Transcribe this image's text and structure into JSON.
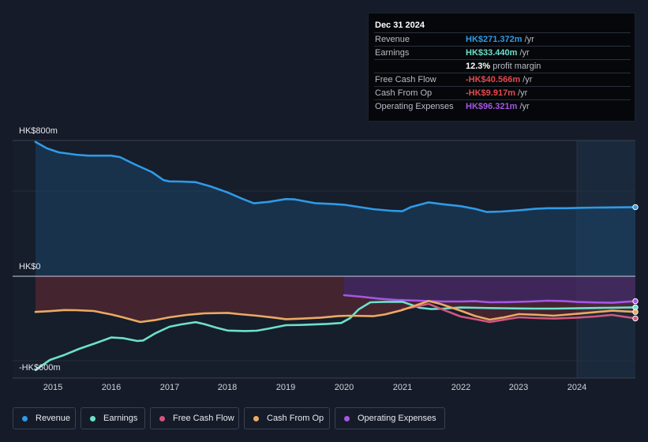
{
  "chart_data": {
    "type": "area",
    "ylim": [
      -600,
      800
    ],
    "ytick_labels": [
      "HK$800m",
      "HK$0",
      "-HK$600m"
    ],
    "xtick_labels": [
      "2015",
      "2016",
      "2017",
      "2018",
      "2019",
      "2020",
      "2021",
      "2022",
      "2023",
      "2024"
    ],
    "xlim": [
      2014.55,
      2025.0
    ],
    "forecast_start": 2024.0,
    "zero": 0,
    "series": [
      {
        "name": "Revenue",
        "key": "revenue",
        "color": "#2f9ae6",
        "points": [
          [
            2014.7,
            851
          ],
          [
            2014.9,
            810
          ],
          [
            2015.1,
            785
          ],
          [
            2015.4,
            770
          ],
          [
            2015.6,
            764
          ],
          [
            2016.0,
            764
          ],
          [
            2016.15,
            755
          ],
          [
            2016.4,
            710
          ],
          [
            2016.7,
            660
          ],
          [
            2016.9,
            609
          ],
          [
            2017.0,
            601
          ],
          [
            2017.2,
            600
          ],
          [
            2017.45,
            596
          ],
          [
            2017.7,
            570
          ],
          [
            2018.0,
            531
          ],
          [
            2018.25,
            491
          ],
          [
            2018.45,
            462
          ],
          [
            2018.7,
            471
          ],
          [
            2019.0,
            489
          ],
          [
            2019.15,
            487
          ],
          [
            2019.5,
            463
          ],
          [
            2019.8,
            458
          ],
          [
            2020.0,
            453
          ],
          [
            2020.2,
            442
          ],
          [
            2020.5,
            425
          ],
          [
            2020.8,
            415
          ],
          [
            2021.0,
            412
          ],
          [
            2021.15,
            439
          ],
          [
            2021.45,
            468
          ],
          [
            2021.7,
            456
          ],
          [
            2022.0,
            444
          ],
          [
            2022.25,
            427
          ],
          [
            2022.45,
            407
          ],
          [
            2022.7,
            410
          ],
          [
            2023.0,
            418
          ],
          [
            2023.3,
            428
          ],
          [
            2023.5,
            431
          ],
          [
            2023.8,
            431
          ],
          [
            2024.0,
            433
          ],
          [
            2024.3,
            435
          ],
          [
            2024.6,
            436
          ],
          [
            2025.0,
            438
          ]
        ]
      },
      {
        "name": "Earnings",
        "key": "earnings",
        "color": "#6de0cc",
        "points": [
          [
            2014.7,
            -594
          ],
          [
            2014.95,
            -530
          ],
          [
            2015.2,
            -498
          ],
          [
            2015.45,
            -460
          ],
          [
            2015.75,
            -422
          ],
          [
            2016.0,
            -388
          ],
          [
            2016.2,
            -392
          ],
          [
            2016.45,
            -410
          ],
          [
            2016.55,
            -407
          ],
          [
            2016.75,
            -363
          ],
          [
            2017.0,
            -320
          ],
          [
            2017.2,
            -305
          ],
          [
            2017.45,
            -291
          ],
          [
            2017.6,
            -303
          ],
          [
            2017.8,
            -325
          ],
          [
            2018.0,
            -344
          ],
          [
            2018.3,
            -347
          ],
          [
            2018.5,
            -345
          ],
          [
            2018.7,
            -332
          ],
          [
            2019.0,
            -310
          ],
          [
            2019.3,
            -308
          ],
          [
            2019.7,
            -302
          ],
          [
            2019.95,
            -296
          ],
          [
            2020.1,
            -266
          ],
          [
            2020.25,
            -210
          ],
          [
            2020.45,
            -165
          ],
          [
            2020.7,
            -162
          ],
          [
            2021.0,
            -162
          ],
          [
            2021.1,
            -174
          ],
          [
            2021.3,
            -200
          ],
          [
            2021.5,
            -208
          ],
          [
            2021.7,
            -205
          ],
          [
            2022.0,
            -198
          ],
          [
            2022.3,
            -200
          ],
          [
            2022.6,
            -202
          ],
          [
            2023.0,
            -204
          ],
          [
            2023.3,
            -205
          ],
          [
            2023.6,
            -205
          ],
          [
            2024.0,
            -203
          ],
          [
            2024.5,
            -200
          ],
          [
            2025.0,
            -197
          ]
        ]
      },
      {
        "name": "Free Cash Flow",
        "key": "fcf",
        "color": "#d3557e",
        "points": [
          [
            2021.0,
            -210
          ],
          [
            2021.2,
            -195
          ],
          [
            2021.45,
            -175
          ],
          [
            2021.7,
            -212
          ],
          [
            2022.0,
            -255
          ],
          [
            2022.25,
            -272
          ],
          [
            2022.5,
            -290
          ],
          [
            2022.8,
            -272
          ],
          [
            2023.0,
            -260
          ],
          [
            2023.3,
            -265
          ],
          [
            2023.6,
            -268
          ],
          [
            2024.0,
            -262
          ],
          [
            2024.3,
            -255
          ],
          [
            2024.6,
            -245
          ],
          [
            2025.0,
            -267
          ]
        ]
      },
      {
        "name": "Cash From Op",
        "key": "cfo",
        "color": "#ebaa62",
        "points": [
          [
            2014.7,
            -226
          ],
          [
            2014.95,
            -221
          ],
          [
            2015.2,
            -214
          ],
          [
            2015.4,
            -215
          ],
          [
            2015.7,
            -220
          ],
          [
            2016.0,
            -242
          ],
          [
            2016.2,
            -260
          ],
          [
            2016.5,
            -290
          ],
          [
            2016.75,
            -278
          ],
          [
            2017.0,
            -260
          ],
          [
            2017.3,
            -245
          ],
          [
            2017.6,
            -235
          ],
          [
            2018.0,
            -232
          ],
          [
            2018.2,
            -240
          ],
          [
            2018.5,
            -250
          ],
          [
            2018.8,
            -262
          ],
          [
            2019.0,
            -272
          ],
          [
            2019.3,
            -268
          ],
          [
            2019.6,
            -262
          ],
          [
            2019.9,
            -252
          ],
          [
            2020.1,
            -250
          ],
          [
            2020.5,
            -253
          ],
          [
            2020.7,
            -242
          ],
          [
            2021.0,
            -214
          ],
          [
            2021.25,
            -182
          ],
          [
            2021.45,
            -157
          ],
          [
            2021.65,
            -175
          ],
          [
            2022.0,
            -218
          ],
          [
            2022.25,
            -252
          ],
          [
            2022.5,
            -275
          ],
          [
            2022.75,
            -260
          ],
          [
            2023.0,
            -240
          ],
          [
            2023.3,
            -244
          ],
          [
            2023.6,
            -250
          ],
          [
            2024.0,
            -238
          ],
          [
            2024.3,
            -228
          ],
          [
            2024.6,
            -218
          ],
          [
            2025.0,
            -226
          ]
        ]
      },
      {
        "name": "Operating Expenses",
        "key": "opex",
        "color": "#a855e6",
        "points": [
          [
            2020.0,
            -120
          ],
          [
            2020.3,
            -130
          ],
          [
            2020.6,
            -142
          ],
          [
            2020.9,
            -150
          ],
          [
            2021.3,
            -155
          ],
          [
            2021.7,
            -160
          ],
          [
            2022.0,
            -160
          ],
          [
            2022.25,
            -158
          ],
          [
            2022.5,
            -165
          ],
          [
            2022.8,
            -164
          ],
          [
            2023.2,
            -160
          ],
          [
            2023.5,
            -155
          ],
          [
            2023.8,
            -158
          ],
          [
            2024.0,
            -163
          ],
          [
            2024.3,
            -166
          ],
          [
            2024.6,
            -168
          ],
          [
            2025.0,
            -158
          ]
        ]
      }
    ]
  },
  "tooltip": {
    "date": "Dec 31 2024",
    "rows": [
      {
        "label": "Revenue",
        "value": "HK$271.372m",
        "unit": "/yr",
        "color": "#2f9ae6"
      },
      {
        "label": "Earnings",
        "value": "HK$33.440m",
        "unit": "/yr",
        "color": "#6de0cc"
      },
      {
        "label": "",
        "value": "12.3%",
        "unit": "profit margin",
        "color": "#ffffff"
      },
      {
        "label": "Free Cash Flow",
        "value": "-HK$40.566m",
        "unit": "/yr",
        "color": "#e5484d"
      },
      {
        "label": "Cash From Op",
        "value": "-HK$9.917m",
        "unit": "/yr",
        "color": "#e5484d"
      },
      {
        "label": "Operating Expenses",
        "value": "HK$96.321m",
        "unit": "/yr",
        "color": "#a855e6"
      }
    ]
  },
  "legend": [
    {
      "label": "Revenue",
      "color": "#2f9ae6"
    },
    {
      "label": "Earnings",
      "color": "#6de0cc"
    },
    {
      "label": "Free Cash Flow",
      "color": "#d3557e"
    },
    {
      "label": "Cash From Op",
      "color": "#ebaa62"
    },
    {
      "label": "Operating Expenses",
      "color": "#a855e6"
    }
  ]
}
